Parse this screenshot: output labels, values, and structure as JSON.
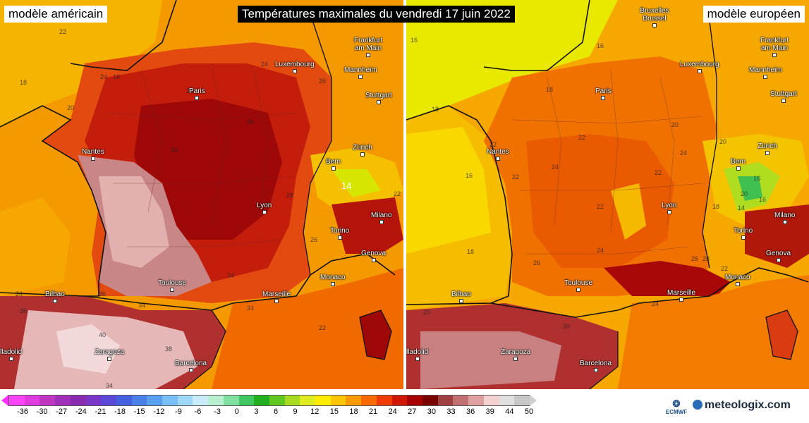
{
  "title": "Températures maximales du vendredi 17 juin 2022",
  "left_panel": {
    "label": "modèle américain",
    "cities": [
      "Paris",
      "Luxembourg",
      "Frankfurt am Main",
      "Mannheim",
      "Stuttgart",
      "Nantes",
      "Bern",
      "Zürich",
      "Lyon",
      "Milano",
      "Torino",
      "Genova",
      "Toulouse",
      "Marseille",
      "Monaco",
      "Bilbao",
      "Zaragoza",
      "Barcelona",
      "lladolid"
    ],
    "isotherm_labels": [
      "22",
      "24",
      "16",
      "18",
      "20",
      "28",
      "24",
      "26",
      "30",
      "30",
      "34",
      "36",
      "14",
      "22",
      "28",
      "24",
      "34",
      "36",
      "40",
      "38",
      "34",
      "24",
      "22",
      "26"
    ]
  },
  "right_panel": {
    "label": "modèle européen",
    "cities": [
      "Bruxelles Brussel",
      "Frankfurt am Main",
      "Luxembourg",
      "Mannheim",
      "Paris",
      "Stuttgart",
      "Nantes",
      "Zürich",
      "Bern",
      "Lyon",
      "Milano",
      "Torino",
      "Genova",
      "Monaco",
      "Toulouse",
      "Marseille",
      "Bilbao",
      "Zaragoza",
      "Barcelona",
      "lladolid"
    ],
    "isotherm_labels": [
      "16",
      "18",
      "16",
      "18",
      "20",
      "22",
      "22",
      "16",
      "20",
      "22",
      "24",
      "22",
      "22",
      "24",
      "18",
      "24",
      "26",
      "18",
      "22",
      "20",
      "26",
      "28",
      "30",
      "24",
      "16",
      "20",
      "14",
      "16"
    ]
  },
  "legend": {
    "ticks": [
      "-36",
      "-30",
      "-27",
      "-24",
      "-21",
      "-18",
      "-15",
      "-12",
      "-9",
      "-6",
      "-3",
      "0",
      "3",
      "6",
      "9",
      "12",
      "15",
      "18",
      "21",
      "24",
      "27",
      "30",
      "33",
      "36",
      "39",
      "44",
      "50"
    ],
    "colors": [
      "#ff44ff",
      "#e03ce0",
      "#c236c2",
      "#a030b8",
      "#8a2cb0",
      "#7a36c8",
      "#5a48d8",
      "#4460e0",
      "#4a80ea",
      "#5aa0f0",
      "#7abff5",
      "#a0d8f8",
      "#c8ecf8",
      "#b8f0d0",
      "#80e0a0",
      "#40c860",
      "#20b020",
      "#60c820",
      "#a8dc20",
      "#e0ec20",
      "#ffea00",
      "#ffc400",
      "#ff9a00",
      "#ff6a00",
      "#f03c00",
      "#d01800",
      "#a80000",
      "#7a0000",
      "#a04040",
      "#c07070",
      "#e0a0a0",
      "#f4d0d0",
      "#e0e0e0",
      "#c8c8c8"
    ]
  },
  "logos": {
    "ecmwf": "ECMWF",
    "brand": "meteologix.com"
  },
  "colors": {
    "title_bg": "#000000",
    "title_fg": "#ffffff"
  }
}
